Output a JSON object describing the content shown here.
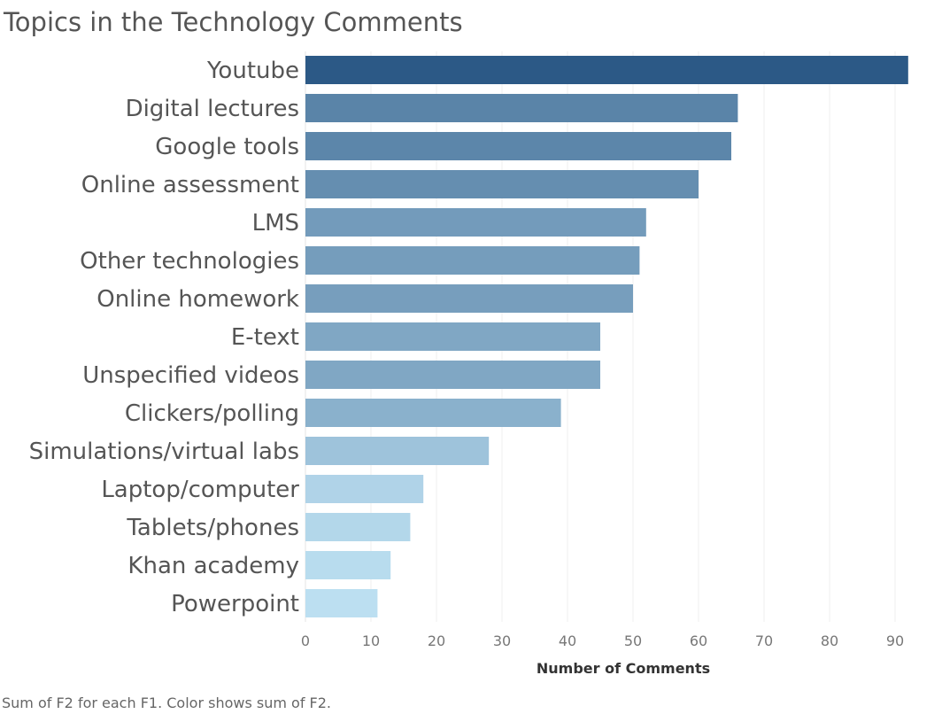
{
  "chart_data": {
    "type": "bar",
    "orientation": "horizontal",
    "title": "Topics in the Technology Comments",
    "categories": [
      "Youtube",
      "Digital lectures",
      "Google tools",
      "Online assessment",
      "LMS",
      "Other technologies",
      "Online homework",
      "E-text",
      "Unspecified videos",
      "Clickers/polling",
      "Simulations/virtual labs",
      "Laptop/computer",
      "Tablets/phones",
      "Khan academy",
      "Powerpoint"
    ],
    "values": [
      92,
      66,
      65,
      60,
      52,
      51,
      50,
      45,
      45,
      39,
      28,
      18,
      16,
      13,
      11
    ],
    "xlabel": "Number of Comments",
    "ylabel": "",
    "xlim": [
      0,
      97
    ],
    "xticks": [
      0,
      10,
      20,
      30,
      40,
      50,
      60,
      70,
      80,
      90
    ],
    "grid": "vertical",
    "color_scale": {
      "low": "#bcdff1",
      "high": "#2c5986",
      "encodes": "value"
    }
  },
  "caption": "Sum of F2 for each F1.  Color shows sum of F2."
}
